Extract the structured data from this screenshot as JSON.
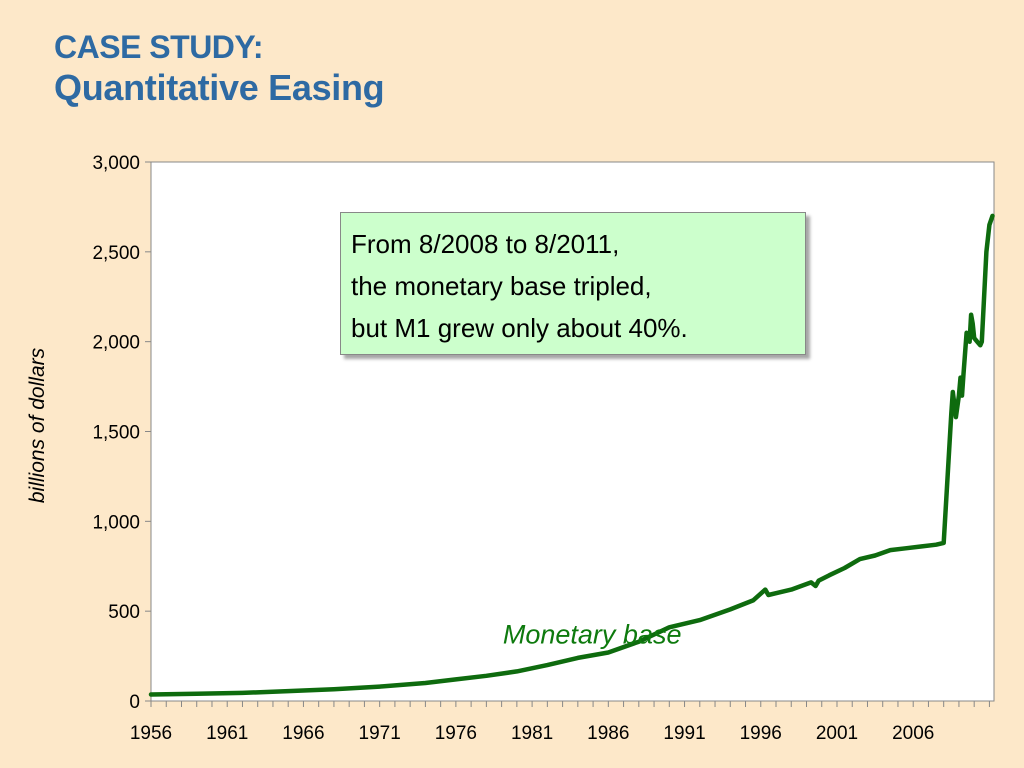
{
  "slide": {
    "title_line1": "CASE STUDY:",
    "title_line2": "Quantitative Easing",
    "callout_lines": [
      "From 8/2008 to 8/2011,",
      "the monetary base tripled,",
      "but M1 grew only about 40%."
    ]
  },
  "colors": {
    "background": "#fde8c9",
    "title": "#2e6aa3",
    "series_line": "#0e6b0e",
    "callout_bg": "#ccffcc"
  },
  "chart_data": {
    "type": "line",
    "title": "",
    "xlabel": "",
    "ylabel": "billions of dollars",
    "xlim": [
      1956,
      2011.3
    ],
    "ylim": [
      0,
      3000
    ],
    "yticks": [
      0,
      500,
      1000,
      1500,
      2000,
      2500,
      3000
    ],
    "ytick_labels": [
      "0",
      "500",
      "1,000",
      "1,500",
      "2,000",
      "2,500",
      "3,000"
    ],
    "xticks": [
      1956,
      1961,
      1966,
      1971,
      1976,
      1981,
      1986,
      1991,
      1996,
      2001,
      2006
    ],
    "xtick_labels": [
      "1956",
      "1961",
      "1966",
      "1971",
      "1976",
      "1981",
      "1986",
      "1991",
      "1996",
      "2001",
      "2006"
    ],
    "grid": false,
    "legend": "none",
    "series": [
      {
        "name": "Monetary base",
        "x": [
          1956,
          1959,
          1962,
          1965,
          1968,
          1971,
          1974,
          1976,
          1978,
          1980,
          1982,
          1984,
          1986,
          1988,
          1990,
          1992,
          1994,
          1995.5,
          1996.3,
          1996.5,
          1997,
          1998,
          1999.3,
          1999.6,
          1999.8,
          2000.5,
          2001.5,
          2002.5,
          2003.5,
          2004.5,
          2005.5,
          2006.5,
          2007.5,
          2008.0,
          2008.5,
          2008.6,
          2008.7,
          2008.8,
          2009.0,
          2009.1,
          2009.2,
          2009.3,
          2009.5,
          2009.7,
          2009.8,
          2009.9,
          2010.0,
          2010.2,
          2010.4,
          2010.5,
          2010.8,
          2011.0,
          2011.2
        ],
        "values": [
          36,
          40,
          45,
          55,
          65,
          80,
          100,
          120,
          140,
          165,
          200,
          240,
          270,
          330,
          410,
          450,
          510,
          560,
          620,
          590,
          600,
          620,
          660,
          640,
          670,
          700,
          740,
          790,
          810,
          840,
          850,
          860,
          870,
          880,
          1600,
          1720,
          1650,
          1580,
          1700,
          1800,
          1700,
          1820,
          2050,
          2000,
          2150,
          2100,
          2020,
          2000,
          1980,
          2000,
          2500,
          2650,
          2700
        ]
      }
    ]
  }
}
